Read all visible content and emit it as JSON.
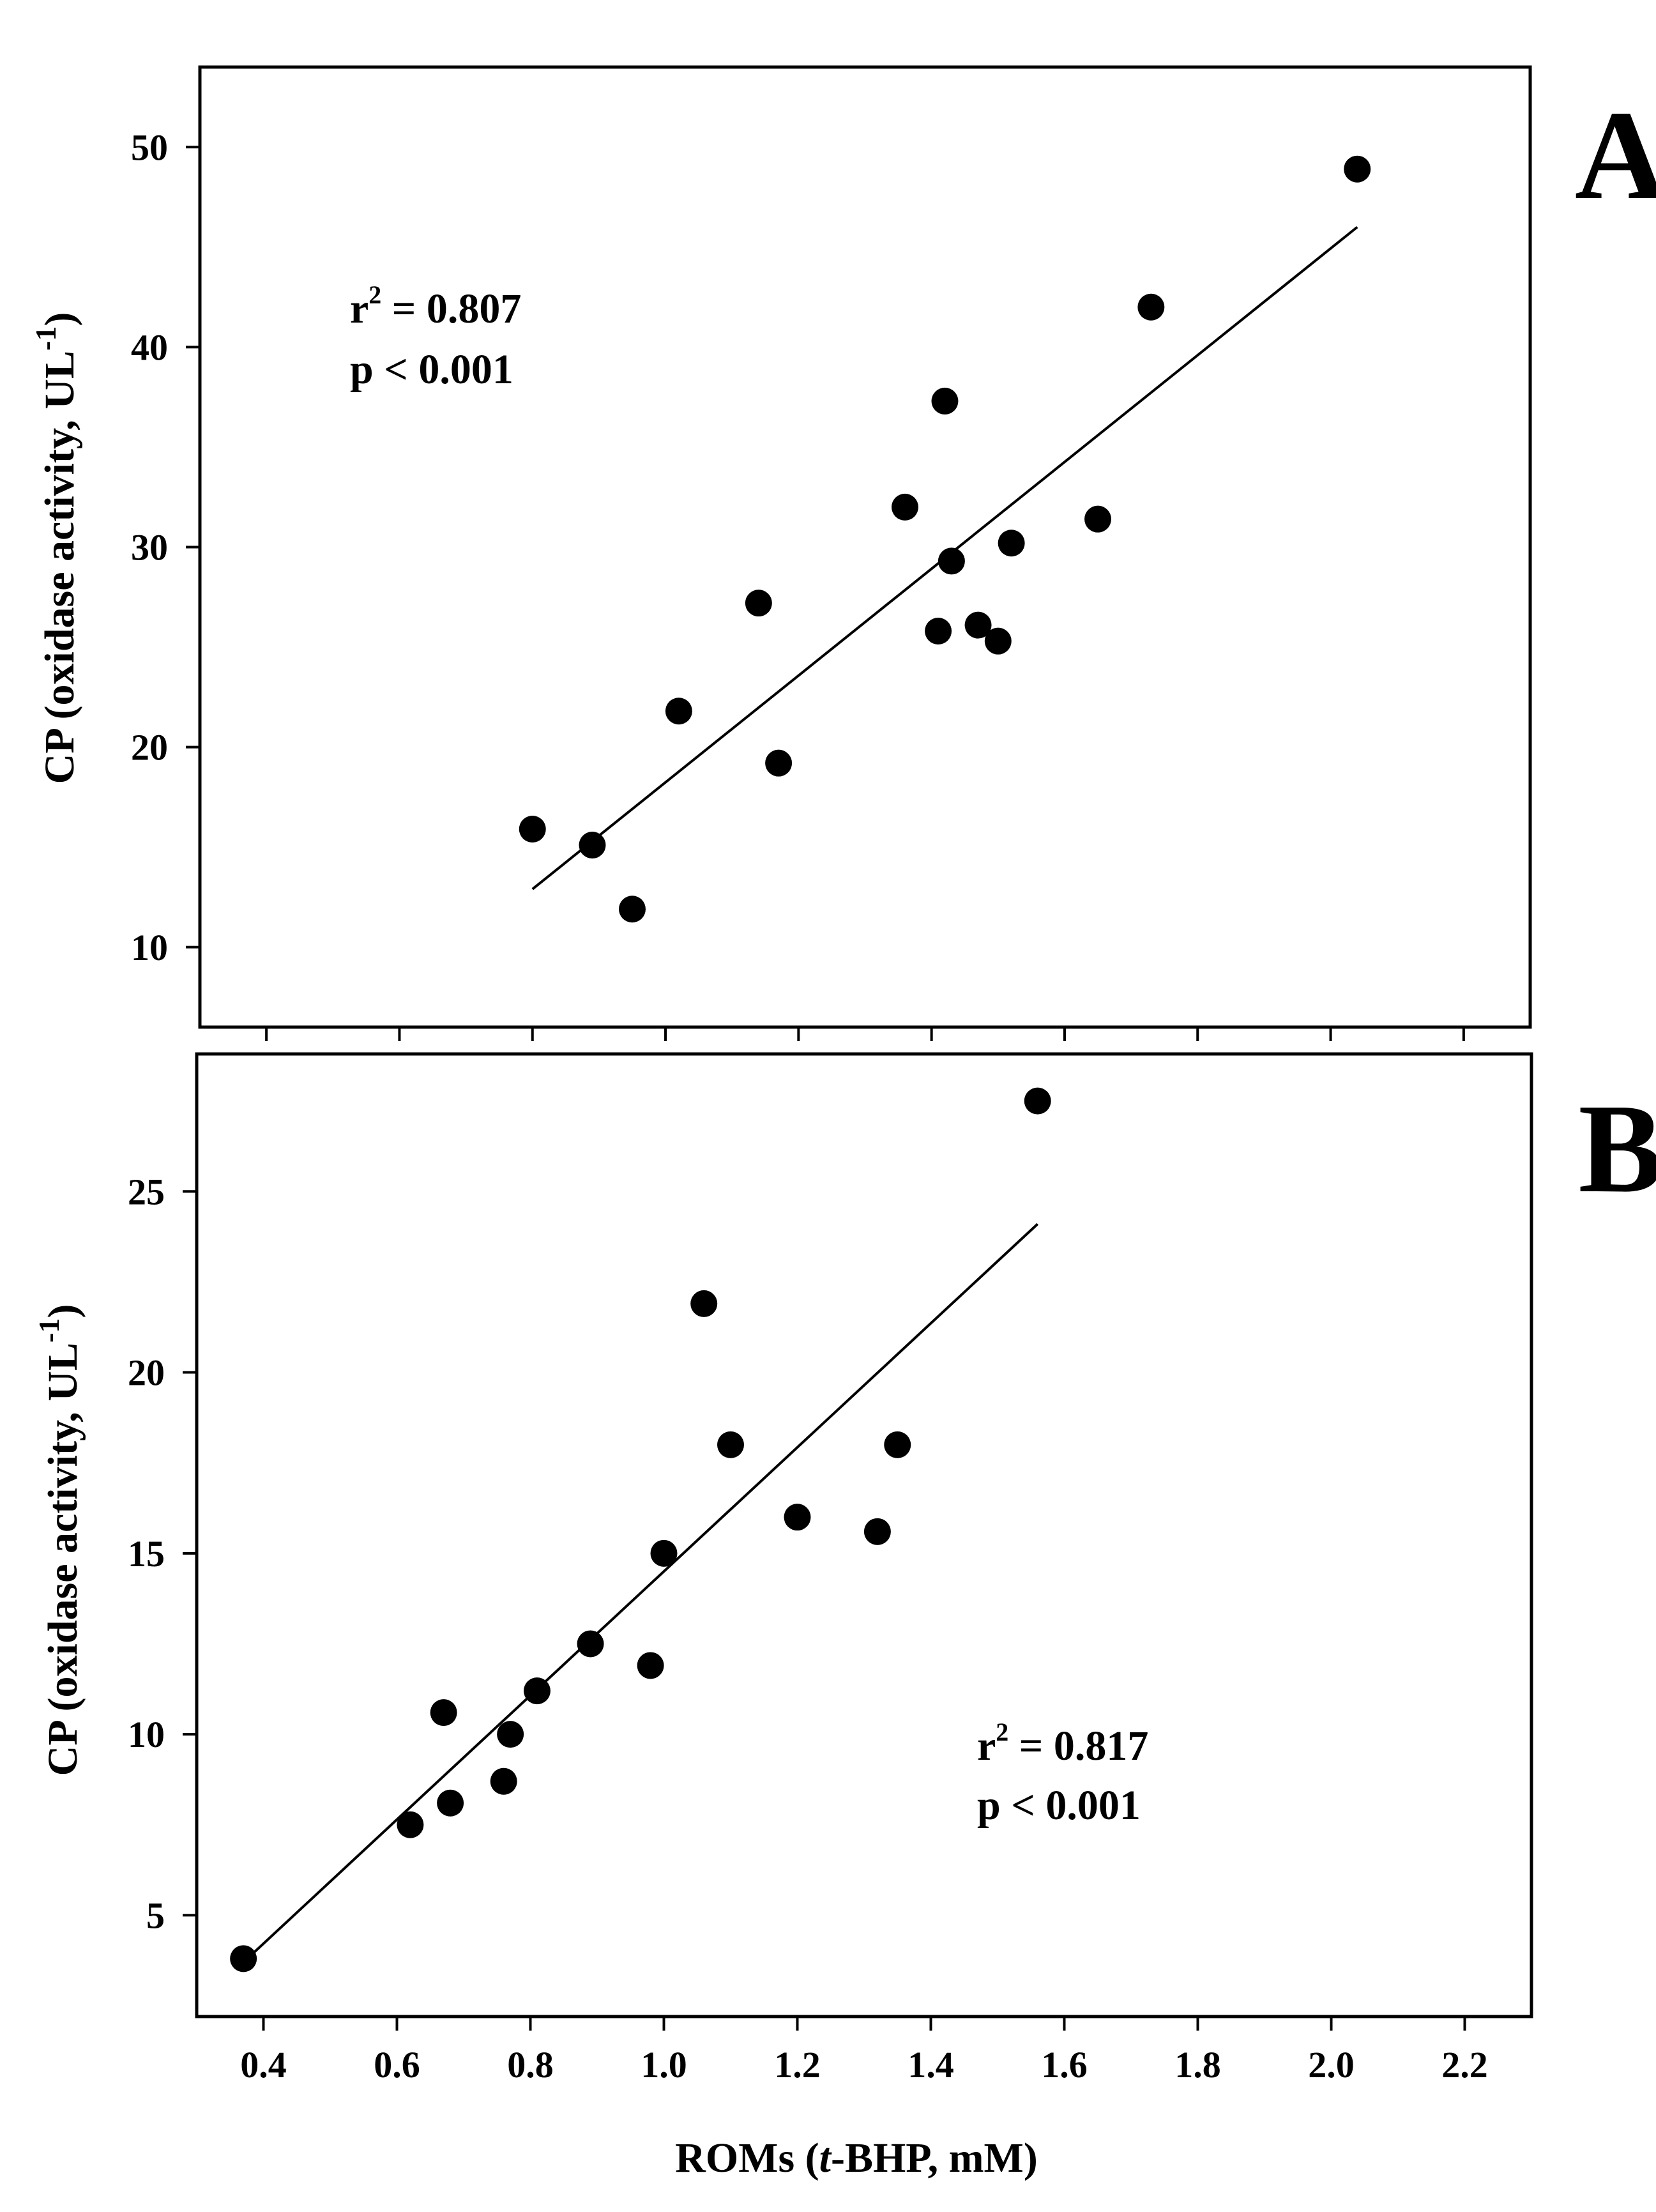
{
  "chart_data": [
    {
      "panel_label": "A",
      "type": "scatter",
      "ylabel_main": "CP (oxidase activity, UL",
      "ylabel_sup": "-1",
      "ylabel_close": ")",
      "xlim": [
        0.3,
        2.3
      ],
      "ylim": [
        6,
        54
      ],
      "xticks": [
        0.4,
        0.6,
        0.8,
        1.0,
        1.2,
        1.4,
        1.6,
        1.8,
        2.0,
        2.2
      ],
      "yticks": [
        10,
        20,
        30,
        40,
        50
      ],
      "ytick_labels": [
        "10",
        "20",
        "30",
        "40",
        "50"
      ],
      "points": [
        {
          "x": 0.8,
          "y": 15.9
        },
        {
          "x": 0.89,
          "y": 15.1
        },
        {
          "x": 0.95,
          "y": 11.9
        },
        {
          "x": 1.02,
          "y": 21.8
        },
        {
          "x": 1.14,
          "y": 27.2
        },
        {
          "x": 1.17,
          "y": 19.2
        },
        {
          "x": 1.36,
          "y": 32.0
        },
        {
          "x": 1.41,
          "y": 25.8
        },
        {
          "x": 1.42,
          "y": 37.3
        },
        {
          "x": 1.43,
          "y": 29.3
        },
        {
          "x": 1.47,
          "y": 26.1
        },
        {
          "x": 1.5,
          "y": 25.3
        },
        {
          "x": 1.52,
          "y": 30.2
        },
        {
          "x": 1.65,
          "y": 31.4
        },
        {
          "x": 1.73,
          "y": 42.0
        },
        {
          "x": 2.04,
          "y": 48.9
        }
      ],
      "fit_line": {
        "x": [
          0.8,
          2.04
        ],
        "y": [
          12.9,
          46.0
        ]
      },
      "stats": {
        "r2_prefix": "r",
        "r2_sup": "2",
        "r2_text": " = 0.807",
        "p_text": "p < 0.001"
      }
    },
    {
      "panel_label": "B",
      "type": "scatter",
      "xlabel_pre": "ROMs (",
      "xlabel_italic": "t",
      "xlabel_post": "-BHP, mM)",
      "ylabel_main": "CP (oxidase activity, UL",
      "ylabel_sup": "-1",
      "ylabel_close": ")",
      "xlim": [
        0.3,
        2.3
      ],
      "ylim": [
        2.2,
        28.8
      ],
      "xticks": [
        0.4,
        0.6,
        0.8,
        1.0,
        1.2,
        1.4,
        1.6,
        1.8,
        2.0,
        2.2
      ],
      "xtick_labels": [
        "0.4",
        "0.6",
        "0.8",
        "1.0",
        "1.2",
        "1.4",
        "1.6",
        "1.8",
        "2.0",
        "2.2"
      ],
      "yticks": [
        5,
        10,
        15,
        20,
        25
      ],
      "ytick_labels": [
        "5",
        "10",
        "15",
        "20",
        "25"
      ],
      "points": [
        {
          "x": 0.37,
          "y": 3.8
        },
        {
          "x": 0.62,
          "y": 7.5
        },
        {
          "x": 0.67,
          "y": 10.6
        },
        {
          "x": 0.68,
          "y": 8.1
        },
        {
          "x": 0.76,
          "y": 8.7
        },
        {
          "x": 0.77,
          "y": 10.0
        },
        {
          "x": 0.81,
          "y": 11.2
        },
        {
          "x": 0.89,
          "y": 12.5
        },
        {
          "x": 0.98,
          "y": 11.9
        },
        {
          "x": 1.0,
          "y": 15.0
        },
        {
          "x": 1.06,
          "y": 21.9
        },
        {
          "x": 1.1,
          "y": 18.0
        },
        {
          "x": 1.2,
          "y": 16.0
        },
        {
          "x": 1.32,
          "y": 15.6
        },
        {
          "x": 1.35,
          "y": 18.0
        },
        {
          "x": 1.56,
          "y": 27.5
        }
      ],
      "fit_line": {
        "x": [
          0.37,
          1.56
        ],
        "y": [
          3.7,
          24.1
        ]
      },
      "stats": {
        "r2_prefix": "r",
        "r2_sup": "2",
        "r2_text": " = 0.817",
        "p_text": "p < 0.001"
      }
    }
  ]
}
